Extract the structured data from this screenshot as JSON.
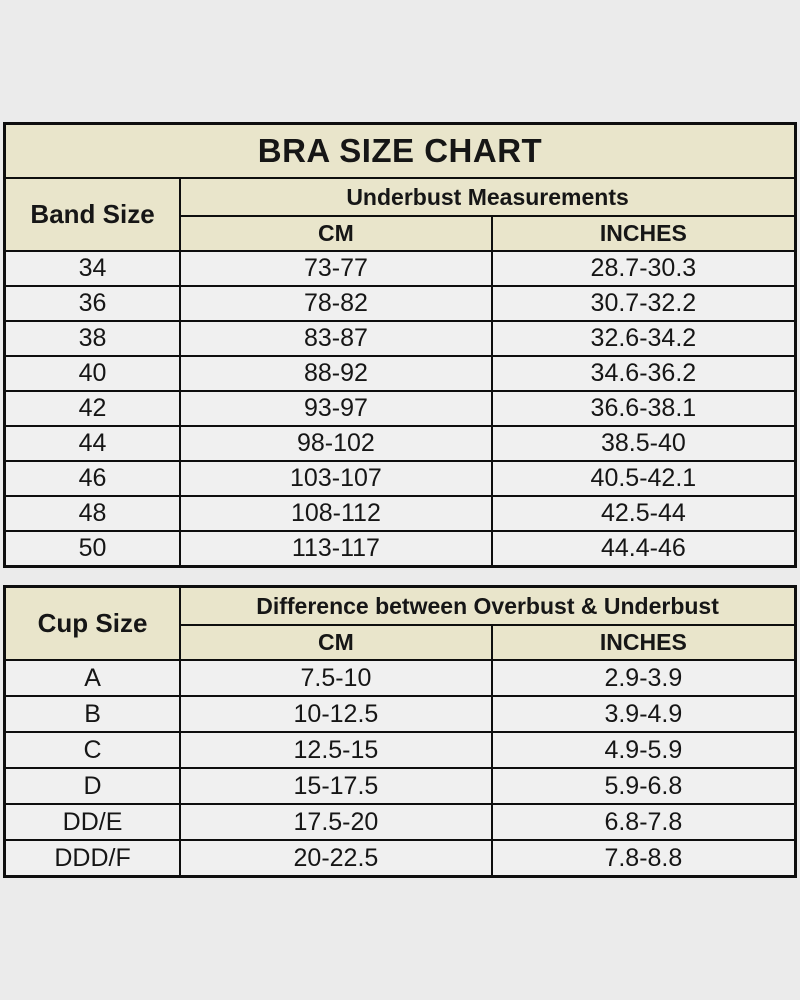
{
  "colors": {
    "page_background": "#ebebeb",
    "header_background": "#e9e5cb",
    "cell_background": "#f0f0f0",
    "border": "#0e0e0e",
    "text": "#161616"
  },
  "chart_data": [
    {
      "type": "table",
      "title": "BRA SIZE CHART",
      "group_header": "Underbust Measurements",
      "columns": [
        "Band Size",
        "CM",
        "INCHES"
      ],
      "rows": [
        [
          "34",
          "73-77",
          "28.7-30.3"
        ],
        [
          "36",
          "78-82",
          "30.7-32.2"
        ],
        [
          "38",
          "83-87",
          "32.6-34.2"
        ],
        [
          "40",
          "88-92",
          "34.6-36.2"
        ],
        [
          "42",
          "93-97",
          "36.6-38.1"
        ],
        [
          "44",
          "98-102",
          "38.5-40"
        ],
        [
          "46",
          "103-107",
          "40.5-42.1"
        ],
        [
          "48",
          "108-112",
          "42.5-44"
        ],
        [
          "50",
          "113-117",
          "44.4-46"
        ]
      ]
    },
    {
      "type": "table",
      "title": "",
      "group_header": "Difference between Overbust & Underbust",
      "columns": [
        "Cup Size",
        "CM",
        "INCHES"
      ],
      "rows": [
        [
          "A",
          "7.5-10",
          "2.9-3.9"
        ],
        [
          "B",
          "10-12.5",
          "3.9-4.9"
        ],
        [
          "C",
          "12.5-15",
          "4.9-5.9"
        ],
        [
          "D",
          "15-17.5",
          "5.9-6.8"
        ],
        [
          "DD/E",
          "17.5-20",
          "6.8-7.8"
        ],
        [
          "DDD/F",
          "20-22.5",
          "7.8-8.8"
        ]
      ]
    }
  ]
}
